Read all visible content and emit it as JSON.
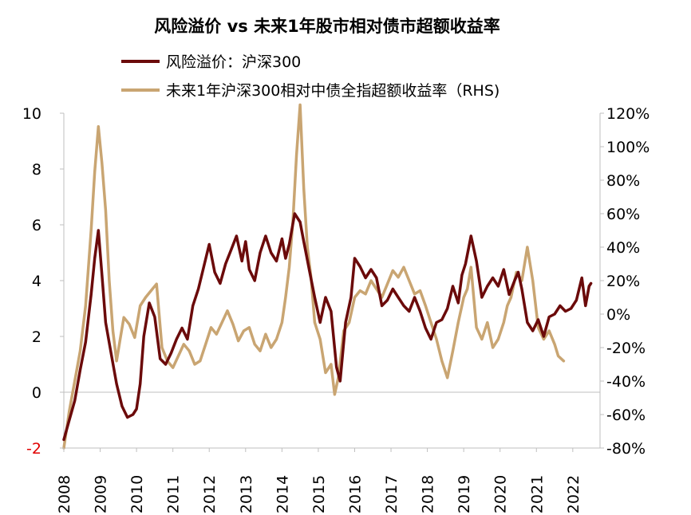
{
  "chart_data": {
    "type": "line",
    "title": "风险溢价 vs 未来1年股市相对债市超额收益率",
    "x_tick_labels": [
      "2008",
      "2009",
      "2010",
      "2011",
      "2012",
      "2013",
      "2014",
      "2015",
      "2016",
      "2017",
      "2018",
      "2019",
      "2020",
      "2021",
      "2022"
    ],
    "left_axis": {
      "ylim": [
        -2,
        10
      ],
      "ticks": [
        -2,
        0,
        2,
        4,
        6,
        8,
        10
      ],
      "tick_labels": [
        "-2",
        "0",
        "2",
        "4",
        "6",
        "8",
        "10"
      ]
    },
    "right_axis": {
      "ylim": [
        -80,
        120
      ],
      "ticks": [
        -80,
        -60,
        -40,
        -20,
        0,
        20,
        40,
        60,
        80,
        100,
        120
      ],
      "tick_labels": [
        "-80%",
        "-60%",
        "-40%",
        "-20%",
        "0%",
        "20%",
        "40%",
        "60%",
        "80%",
        "100%",
        "120%"
      ]
    },
    "series": [
      {
        "name": "风险溢价：沪深300",
        "axis": "left",
        "color": "#6b0a0a",
        "x": [
          2008.0,
          2008.15,
          2008.3,
          2008.45,
          2008.6,
          2008.75,
          2008.85,
          2008.95,
          2009.05,
          2009.15,
          2009.3,
          2009.45,
          2009.6,
          2009.75,
          2009.9,
          2010.0,
          2010.1,
          2010.2,
          2010.35,
          2010.5,
          2010.65,
          2010.8,
          2010.95,
          2011.1,
          2011.25,
          2011.4,
          2011.55,
          2011.7,
          2011.85,
          2012.0,
          2012.15,
          2012.3,
          2012.45,
          2012.6,
          2012.75,
          2012.9,
          2013.0,
          2013.1,
          2013.25,
          2013.4,
          2013.55,
          2013.7,
          2013.85,
          2014.0,
          2014.1,
          2014.2,
          2014.35,
          2014.5,
          2014.6,
          2014.75,
          2014.9,
          2015.05,
          2015.2,
          2015.35,
          2015.5,
          2015.6,
          2015.75,
          2015.9,
          2016.0,
          2016.15,
          2016.3,
          2016.45,
          2016.6,
          2016.75,
          2016.9,
          2017.05,
          2017.2,
          2017.35,
          2017.5,
          2017.65,
          2017.8,
          2017.95,
          2018.1,
          2018.25,
          2018.4,
          2018.55,
          2018.7,
          2018.85,
          2018.95,
          2019.05,
          2019.2,
          2019.35,
          2019.5,
          2019.65,
          2019.8,
          2019.95,
          2020.1,
          2020.25,
          2020.4,
          2020.5,
          2020.6,
          2020.75,
          2020.9,
          2021.05,
          2021.2,
          2021.35,
          2021.5,
          2021.65,
          2021.8,
          2021.95,
          2022.1,
          2022.25,
          2022.35,
          2022.45,
          2022.5
        ],
        "values": [
          -1.7,
          -1.0,
          -0.3,
          0.8,
          1.8,
          3.5,
          4.8,
          5.8,
          4.2,
          2.5,
          1.4,
          0.3,
          -0.5,
          -0.9,
          -0.8,
          -0.6,
          0.3,
          2.0,
          3.2,
          2.7,
          1.2,
          1.0,
          1.4,
          1.9,
          2.3,
          1.9,
          3.1,
          3.7,
          4.5,
          5.3,
          4.3,
          3.9,
          4.6,
          5.1,
          5.6,
          4.7,
          5.4,
          4.4,
          4.0,
          5.0,
          5.6,
          5.0,
          4.7,
          5.5,
          4.8,
          5.3,
          6.4,
          6.1,
          5.4,
          4.4,
          3.4,
          2.5,
          3.4,
          2.9,
          0.9,
          0.4,
          2.5,
          3.4,
          4.8,
          4.5,
          4.1,
          4.4,
          4.1,
          3.1,
          3.3,
          3.7,
          3.4,
          3.1,
          2.9,
          3.4,
          2.9,
          2.3,
          1.9,
          2.5,
          2.6,
          3.0,
          3.8,
          3.2,
          4.2,
          4.6,
          5.6,
          4.7,
          3.4,
          3.8,
          4.1,
          3.8,
          4.4,
          3.5,
          4.0,
          4.3,
          3.7,
          2.5,
          2.2,
          2.6,
          2.0,
          2.7,
          2.8,
          3.1,
          2.9,
          3.0,
          3.3,
          4.1,
          3.1,
          3.8,
          3.9
        ]
      },
      {
        "name": "未来1年沪深300相对中债全指超额收益率（RHS)",
        "axis": "right",
        "color": "#c9a572",
        "x": [
          2008.0,
          2008.15,
          2008.3,
          2008.45,
          2008.6,
          2008.75,
          2008.85,
          2008.95,
          2009.05,
          2009.15,
          2009.25,
          2009.35,
          2009.45,
          2009.55,
          2009.65,
          2009.8,
          2009.95,
          2010.1,
          2010.25,
          2010.4,
          2010.55,
          2010.7,
          2010.85,
          2011.0,
          2011.15,
          2011.3,
          2011.45,
          2011.6,
          2011.75,
          2011.9,
          2012.05,
          2012.2,
          2012.35,
          2012.5,
          2012.65,
          2012.8,
          2012.95,
          2013.1,
          2013.25,
          2013.4,
          2013.55,
          2013.7,
          2013.85,
          2014.0,
          2014.1,
          2014.2,
          2014.3,
          2014.4,
          2014.5,
          2014.6,
          2014.7,
          2014.8,
          2014.9,
          2015.05,
          2015.2,
          2015.35,
          2015.45,
          2015.55,
          2015.7,
          2015.85,
          2016.0,
          2016.15,
          2016.3,
          2016.45,
          2016.6,
          2016.75,
          2016.9,
          2017.05,
          2017.2,
          2017.35,
          2017.5,
          2017.65,
          2017.8,
          2017.95,
          2018.1,
          2018.25,
          2018.4,
          2018.55,
          2018.7,
          2018.85,
          2019.0,
          2019.1,
          2019.2,
          2019.35,
          2019.5,
          2019.65,
          2019.8,
          2019.95,
          2020.1,
          2020.2,
          2020.3,
          2020.45,
          2020.6,
          2020.75,
          2020.9,
          2021.05,
          2021.2,
          2021.35,
          2021.5,
          2021.6,
          2021.75
        ],
        "values": [
          -80,
          -58,
          -40,
          -22,
          5,
          50,
          85,
          112,
          90,
          62,
          20,
          -10,
          -28,
          -15,
          -2,
          -6,
          -14,
          5,
          10,
          14,
          18,
          -20,
          -28,
          -32,
          -25,
          -18,
          -22,
          -30,
          -28,
          -18,
          -8,
          -12,
          -5,
          2,
          -6,
          -16,
          -10,
          -8,
          -18,
          -22,
          -12,
          -20,
          -15,
          -5,
          10,
          28,
          55,
          95,
          125,
          75,
          40,
          22,
          -5,
          -15,
          -35,
          -30,
          -48,
          -38,
          -10,
          -5,
          10,
          14,
          12,
          20,
          15,
          10,
          18,
          26,
          22,
          28,
          20,
          12,
          14,
          5,
          -5,
          -15,
          -28,
          -38,
          -22,
          -5,
          10,
          15,
          28,
          -8,
          -15,
          -5,
          -20,
          -15,
          -5,
          5,
          10,
          25,
          20,
          40,
          20,
          -8,
          -15,
          -10,
          -18,
          -25,
          -28
        ]
      }
    ]
  }
}
